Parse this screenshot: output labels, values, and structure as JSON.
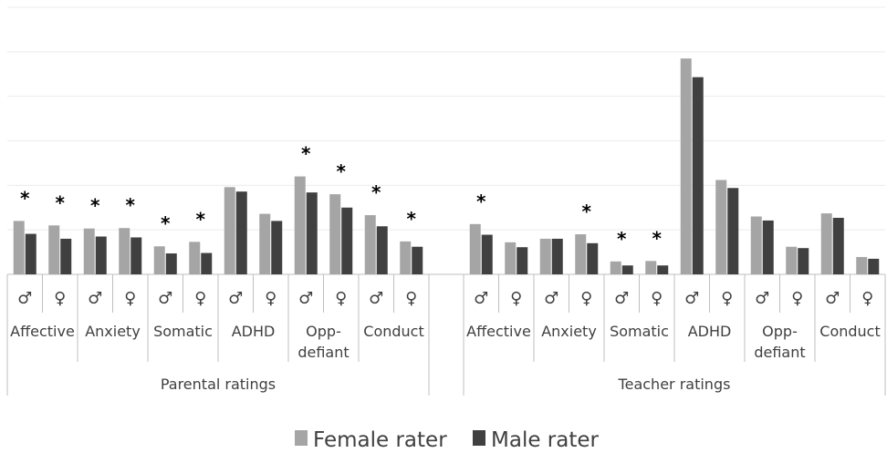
{
  "chart_data": {
    "type": "bar",
    "ylim": [
      0,
      6
    ],
    "grid": true,
    "legend_position": "bottom",
    "groups": [
      "Parental ratings",
      "Teacher ratings"
    ],
    "subcategories": [
      "Affective",
      "Anxiety",
      "Somatic",
      "ADHD",
      "Opp-defiant",
      "Conduct"
    ],
    "subcategory_lines": [
      [
        "Affective"
      ],
      [
        "Anxiety"
      ],
      [
        "Somatic"
      ],
      [
        "ADHD"
      ],
      [
        "Opp-",
        "defiant"
      ],
      [
        "Conduct"
      ]
    ],
    "sex_labels": [
      "♂",
      "♀"
    ],
    "categories": [
      "Parental ratings | Affective | ♂",
      "Parental ratings | Affective | ♀",
      "Parental ratings | Anxiety | ♂",
      "Parental ratings | Anxiety | ♀",
      "Parental ratings | Somatic | ♂",
      "Parental ratings | Somatic | ♀",
      "Parental ratings | ADHD | ♂",
      "Parental ratings | ADHD | ♀",
      "Parental ratings | Opp-defiant | ♂",
      "Parental ratings | Opp-defiant | ♀",
      "Parental ratings | Conduct | ♂",
      "Parental ratings | Conduct | ♀",
      "Teacher ratings | Affective | ♂",
      "Teacher ratings | Affective | ♀",
      "Teacher ratings | Anxiety | ♂",
      "Teacher ratings | Anxiety | ♀",
      "Teacher ratings | Somatic | ♂",
      "Teacher ratings | Somatic | ♀",
      "Teacher ratings | ADHD | ♂",
      "Teacher ratings | ADHD | ♀",
      "Teacher ratings | Opp-defiant | ♂",
      "Teacher ratings | Opp-defiant | ♀",
      "Teacher ratings | Conduct | ♂",
      "Teacher ratings | Conduct | ♀"
    ],
    "series": [
      {
        "name": "Female rater",
        "color": "#a5a5a5",
        "values": [
          1.2,
          1.1,
          1.03,
          1.04,
          0.63,
          0.73,
          1.96,
          1.36,
          2.2,
          1.8,
          1.33,
          0.74,
          1.13,
          0.72,
          0.8,
          0.9,
          0.29,
          0.3,
          4.85,
          2.12,
          1.3,
          0.62,
          1.37,
          0.39
        ]
      },
      {
        "name": "Male rater",
        "color": "#404040",
        "values": [
          0.91,
          0.8,
          0.85,
          0.83,
          0.47,
          0.48,
          1.86,
          1.2,
          1.84,
          1.5,
          1.08,
          0.62,
          0.89,
          0.61,
          0.8,
          0.7,
          0.2,
          0.2,
          4.43,
          1.94,
          1.21,
          0.59,
          1.27,
          0.35
        ]
      }
    ],
    "significance_marker": "*",
    "significant": [
      true,
      true,
      true,
      true,
      true,
      true,
      false,
      false,
      true,
      true,
      true,
      true,
      true,
      false,
      false,
      true,
      true,
      true,
      false,
      false,
      false,
      false,
      false,
      false
    ]
  }
}
